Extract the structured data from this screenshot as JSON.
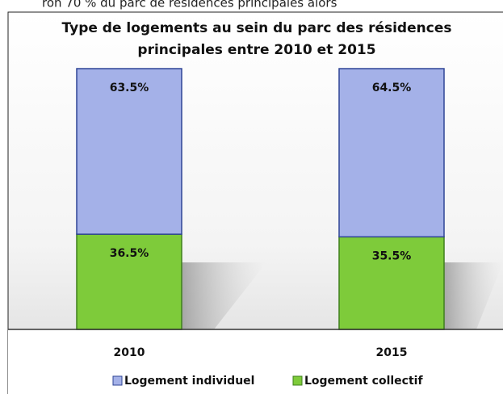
{
  "caption_fragment": "ron 70 % du parc de résidences principales alors",
  "chart_data": {
    "type": "stacked_bar",
    "title": [
      "Type de logements au sein du parc des résidences",
      "principales entre 2010 et 2015"
    ],
    "categories": [
      "2010",
      "2015"
    ],
    "ylim": [
      0,
      100
    ],
    "series": [
      {
        "name": "Logement individuel",
        "color": "#a4b1e8",
        "edge": "#2f4596",
        "values": [
          63.5,
          64.5
        ],
        "value_labels": [
          "63.5%",
          "64.5%"
        ]
      },
      {
        "name": "Logement collectif",
        "color": "#7ecb3a",
        "edge": "#3f7f1c",
        "values": [
          36.5,
          35.5
        ],
        "value_labels": [
          "36.5%",
          "35.5%"
        ]
      }
    ]
  }
}
